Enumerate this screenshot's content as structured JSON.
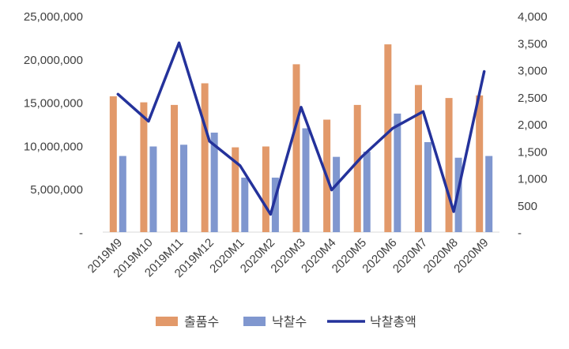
{
  "chart_data": {
    "type": "bar",
    "categories": [
      "2019M9",
      "2019M10",
      "2019M11",
      "2019M12",
      "2020M1",
      "2020M2",
      "2020M3",
      "2020M4",
      "2020M5",
      "2020M6",
      "2020M7",
      "2020M8",
      "2020M9"
    ],
    "series": [
      {
        "name": "출품수",
        "type": "bar",
        "axis": "left",
        "color": "#E2996A",
        "values": [
          15700000,
          15000000,
          14700000,
          17200000,
          9800000,
          9900000,
          19400000,
          13000000,
          14700000,
          21700000,
          17000000,
          15500000,
          15800000
        ]
      },
      {
        "name": "낙찰수",
        "type": "bar",
        "axis": "left",
        "color": "#8097CF",
        "values": [
          8800000,
          9900000,
          10100000,
          11500000,
          6300000,
          6300000,
          12000000,
          8700000,
          9300000,
          13700000,
          10400000,
          8600000,
          8800000
        ]
      },
      {
        "name": "낙찰총액",
        "type": "line",
        "axis": "right",
        "color": "#24329B",
        "values": [
          2550,
          2050,
          3500,
          1680,
          1230,
          330,
          2310,
          780,
          1400,
          1920,
          2230,
          380,
          2970
        ]
      }
    ],
    "y_left": {
      "min": 0,
      "max": 25000000,
      "ticks": [
        0,
        5000000,
        10000000,
        15000000,
        20000000,
        25000000
      ],
      "tick_labels": [
        "-",
        "5,000,000",
        "10,000,000",
        "15,000,000",
        "20,000,000",
        "25,000,000"
      ]
    },
    "y_right": {
      "min": 0,
      "max": 4000,
      "ticks": [
        0,
        500,
        1000,
        1500,
        2000,
        2500,
        3000,
        3500,
        4000
      ],
      "tick_labels": [
        "-",
        "500",
        "1,000",
        "1,500",
        "2,000",
        "2,500",
        "3,000",
        "3,500",
        "4,000"
      ]
    },
    "grid": false,
    "legend": "bottom"
  }
}
